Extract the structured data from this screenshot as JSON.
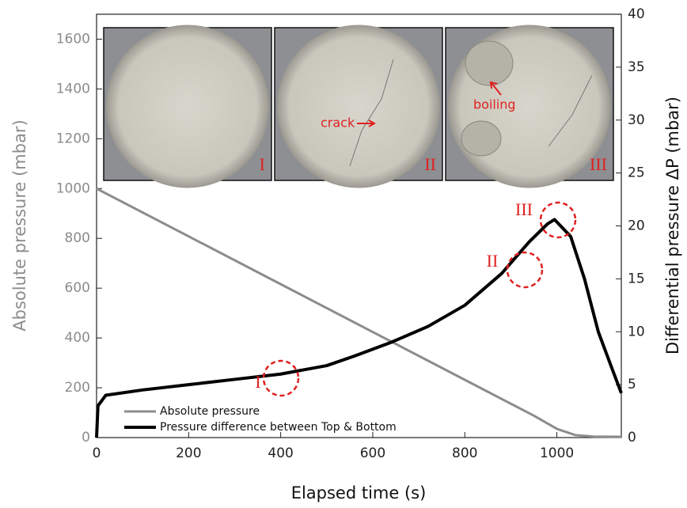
{
  "chart_data": {
    "type": "line",
    "xlabel": "Elapsed time (s)",
    "ylabel": "Absolute pressure (mbar)",
    "y2label": "Differential pressure ΔP (mbar)",
    "xlim": [
      0,
      1140
    ],
    "xticks": [
      0,
      200,
      400,
      600,
      800,
      1000
    ],
    "ylim": [
      0,
      1700
    ],
    "yticks": [
      0,
      200,
      400,
      600,
      800,
      1000,
      1200,
      1400,
      1600
    ],
    "y2lim": [
      0,
      40
    ],
    "y2ticks": [
      0,
      5,
      10,
      15,
      20,
      25,
      30,
      35,
      40
    ],
    "legend": "lower left",
    "series": [
      {
        "name": "Absolute pressure",
        "color": "#8c8c8c",
        "x": [
          0,
          200,
          400,
          600,
          800,
          950,
          1000,
          1040,
          1080,
          1140
        ],
        "values": [
          1000,
          808,
          616,
          424,
          232,
          88,
          35,
          10,
          4,
          3
        ]
      },
      {
        "name": "Pressure difference between Top & Bottom",
        "color": "#000000",
        "axis": "y2",
        "x": [
          0,
          3,
          20,
          100,
          200,
          300,
          400,
          500,
          560,
          640,
          720,
          800,
          880,
          940,
          980,
          995,
          1030,
          1060,
          1090,
          1120,
          1140
        ],
        "values": [
          0,
          3,
          4,
          4.5,
          5,
          5.5,
          6,
          6.8,
          7.7,
          9,
          10.5,
          12.5,
          15.5,
          18.5,
          20.2,
          20.6,
          19,
          15,
          10,
          6.5,
          4.2
        ]
      }
    ],
    "annotations": [
      "I",
      "II",
      "III"
    ],
    "insets": [
      {
        "label": "I"
      },
      {
        "label": "II",
        "note": "crack"
      },
      {
        "label": "III",
        "note": "boiling"
      }
    ]
  }
}
